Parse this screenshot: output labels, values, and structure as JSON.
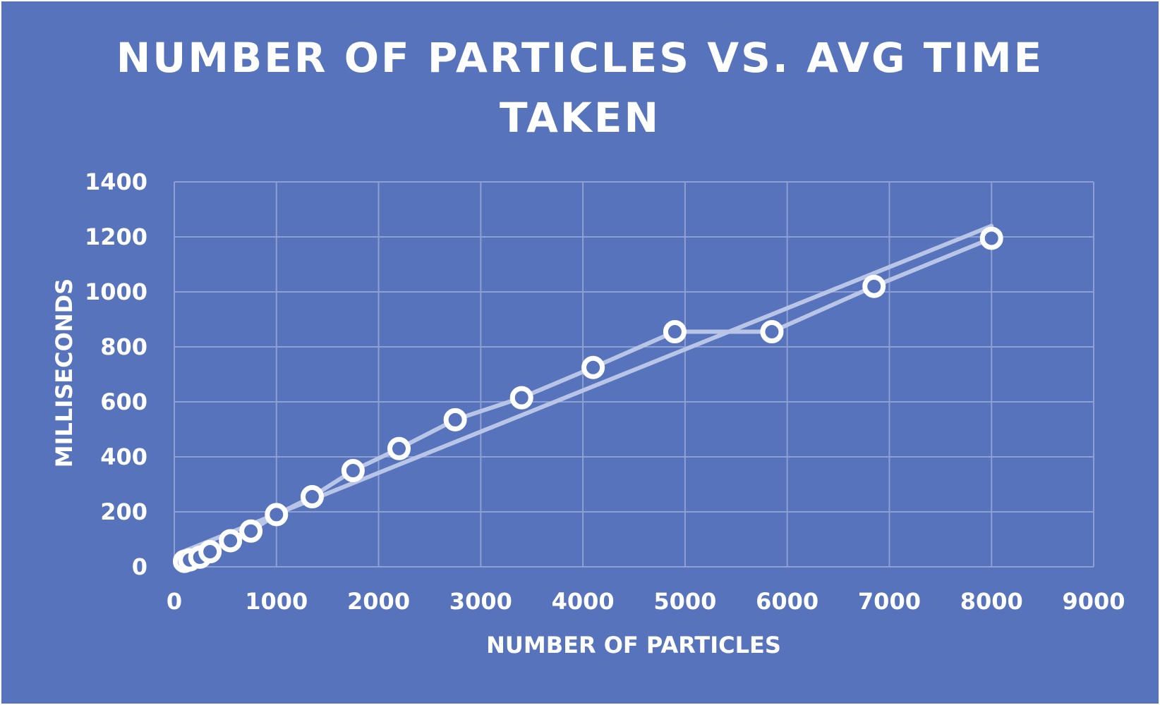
{
  "chart_data": {
    "type": "scatter",
    "title_lines": [
      "NUMBER OF PARTICLES VS. AVG TIME",
      "TAKEN"
    ],
    "xlabel": "NUMBER OF PARTICLES",
    "ylabel": "MILLISECONDS",
    "xlim": [
      0,
      9000
    ],
    "ylim": [
      0,
      1400
    ],
    "xticks": [
      0,
      1000,
      2000,
      3000,
      4000,
      5000,
      6000,
      7000,
      8000,
      9000
    ],
    "yticks": [
      0,
      200,
      400,
      600,
      800,
      1000,
      1200,
      1400
    ],
    "grid": true,
    "legend": "none",
    "series": [
      {
        "x": [
          100,
          150,
          250,
          350,
          550,
          750,
          1000,
          1350,
          1750,
          2200,
          2750,
          3400,
          4100,
          4900,
          5850,
          6850,
          8000
        ],
        "y": [
          20,
          25,
          35,
          55,
          95,
          130,
          190,
          255,
          350,
          430,
          535,
          615,
          725,
          855,
          855,
          1020,
          1195
        ]
      }
    ],
    "trendline": {
      "x": [
        50,
        8000
      ],
      "y": [
        50,
        1240
      ]
    },
    "colors": {
      "background": "#5673BC",
      "grid": "#8EA0D3",
      "line": "#B8C5E6",
      "marker": "#FFFFFF",
      "text": "#FFFFFF"
    }
  }
}
